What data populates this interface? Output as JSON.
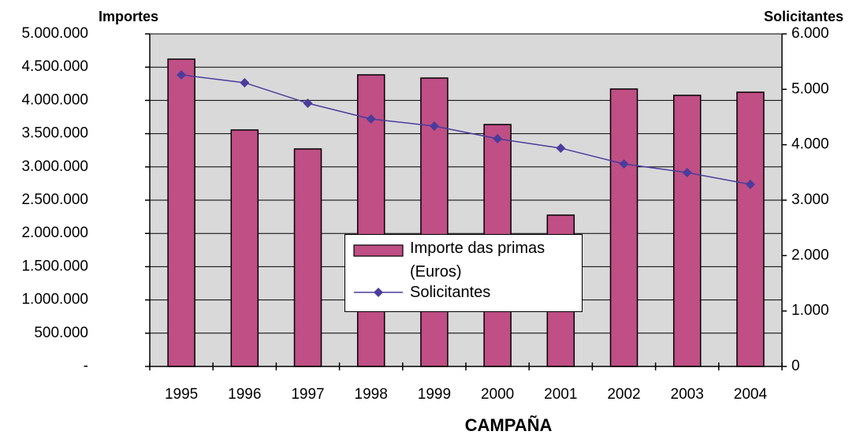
{
  "chart_data": {
    "type": "bar-line",
    "y_label": "Importes",
    "y2_label": "Solicitantes",
    "x_label": "CAMPAÑA",
    "categories": [
      "1995",
      "1996",
      "1997",
      "1998",
      "1999",
      "2000",
      "2001",
      "2002",
      "2003",
      "2004"
    ],
    "series": [
      {
        "name": "Importe das primas (Euros)",
        "type": "bar",
        "color": "#bf4f85",
        "axis": "y",
        "values": [
          4620000,
          3555000,
          3270000,
          4384000,
          4336000,
          3637000,
          2275000,
          4171000,
          4076000,
          4123000
        ]
      },
      {
        "name": "Solicitantes",
        "type": "line",
        "color": "#4a3c9c",
        "axis": "y2",
        "values": [
          5261,
          5119,
          4749,
          4465,
          4337,
          4109,
          3939,
          3654,
          3498,
          3285
        ]
      }
    ],
    "ylim": [
      0,
      5000000
    ],
    "yticks": [
      {
        "value": 0,
        "label": "-"
      },
      {
        "value": 500000,
        "label": "500.000"
      },
      {
        "value": 1000000,
        "label": "1.000.000"
      },
      {
        "value": 1500000,
        "label": "1.500.000"
      },
      {
        "value": 2000000,
        "label": "2.000.000"
      },
      {
        "value": 2500000,
        "label": "2.500.000"
      },
      {
        "value": 3000000,
        "label": "3.000.000"
      },
      {
        "value": 3500000,
        "label": "3.500.000"
      },
      {
        "value": 4000000,
        "label": "4.000.000"
      },
      {
        "value": 4500000,
        "label": "4.500.000"
      },
      {
        "value": 5000000,
        "label": "5.000.000"
      }
    ],
    "y2lim": [
      0,
      6000
    ],
    "y2ticks": [
      0,
      {
        "value": 1000,
        "label": "1.000"
      },
      {
        "value": 2000,
        "label": "2.000"
      },
      {
        "value": 3000,
        "label": "3.000"
      },
      {
        "value": 4000,
        "label": "4.000"
      },
      {
        "value": 5000,
        "label": "5.000"
      },
      {
        "value": 6000,
        "label": "6.000"
      }
    ],
    "grid": true,
    "plot_background": "#d9d9d9"
  }
}
